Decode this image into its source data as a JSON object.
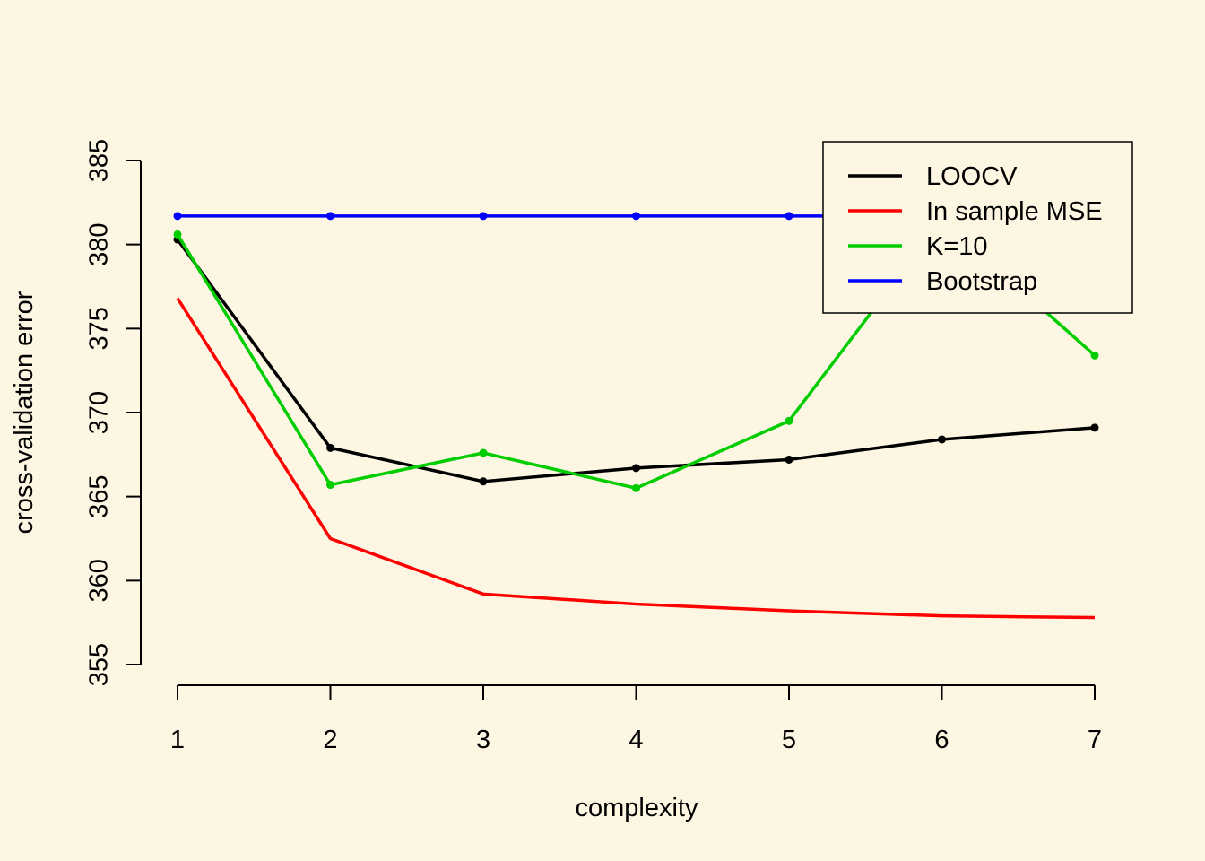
{
  "chart_data": {
    "type": "line",
    "xlabel": "complexity",
    "ylabel": "cross-validation error",
    "x": [
      1,
      2,
      3,
      4,
      5,
      6,
      7
    ],
    "xticks": [
      "1",
      "2",
      "3",
      "4",
      "5",
      "6",
      "7"
    ],
    "yticks": [
      "355",
      "360",
      "365",
      "370",
      "375",
      "380",
      "385"
    ],
    "xlim": [
      1,
      7
    ],
    "ylim": [
      355,
      385
    ],
    "grid": false,
    "legend_position": "top-right",
    "series": [
      {
        "name": "LOOCV",
        "color": "#000000",
        "markers": true,
        "values": [
          380.3,
          367.9,
          365.9,
          366.7,
          367.2,
          368.4,
          369.1
        ]
      },
      {
        "name": "In sample MSE",
        "color": "#ff0000",
        "markers": false,
        "values": [
          376.8,
          362.5,
          359.2,
          358.6,
          358.2,
          357.9,
          357.8
        ]
      },
      {
        "name": "K=10",
        "color": "#00cd00",
        "markers": true,
        "values": [
          380.6,
          365.7,
          367.6,
          365.5,
          369.5,
          381.5,
          373.4
        ]
      },
      {
        "name": "Bootstrap",
        "color": "#0000ff",
        "markers": true,
        "values": [
          381.7,
          381.7,
          381.7,
          381.7,
          381.7,
          381.7,
          381.7
        ]
      }
    ]
  }
}
